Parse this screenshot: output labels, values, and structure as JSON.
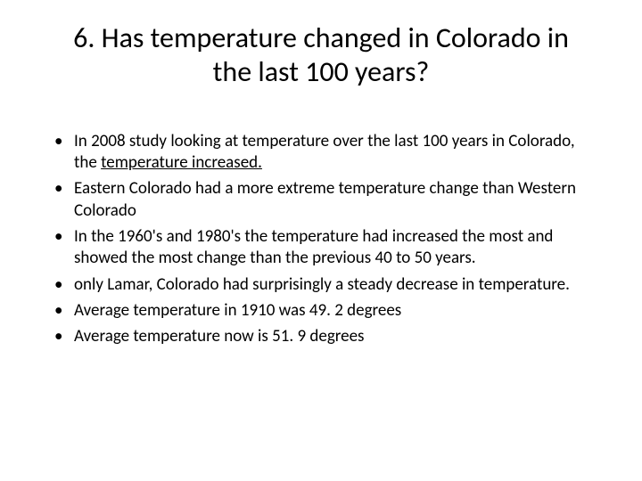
{
  "title": "6. Has temperature changed in Colorado in the last 100 years?",
  "bullets": [
    {
      "pre": "In 2008 study looking at temperature over the last 100 years in Colorado, the ",
      "u": "temperature increased."
    },
    {
      "text": "Eastern Colorado had a more extreme temperature change than Western Colorado"
    },
    {
      "text": "In the 1960's and 1980's the temperature had increased the most and showed the most change than the previous 40 to 50 years."
    },
    {
      "text": " only Lamar, Colorado had surprisingly a steady decrease in temperature."
    },
    {
      "text": "Average temperature in 1910 was 49. 2 degrees"
    },
    {
      "text": "Average temperature now is 51. 9 degrees"
    }
  ],
  "colors": {
    "text": "#000000",
    "background": "#ffffff"
  },
  "typography": {
    "title_fontsize": 32,
    "body_fontsize": 19,
    "font_family": "Calibri"
  }
}
